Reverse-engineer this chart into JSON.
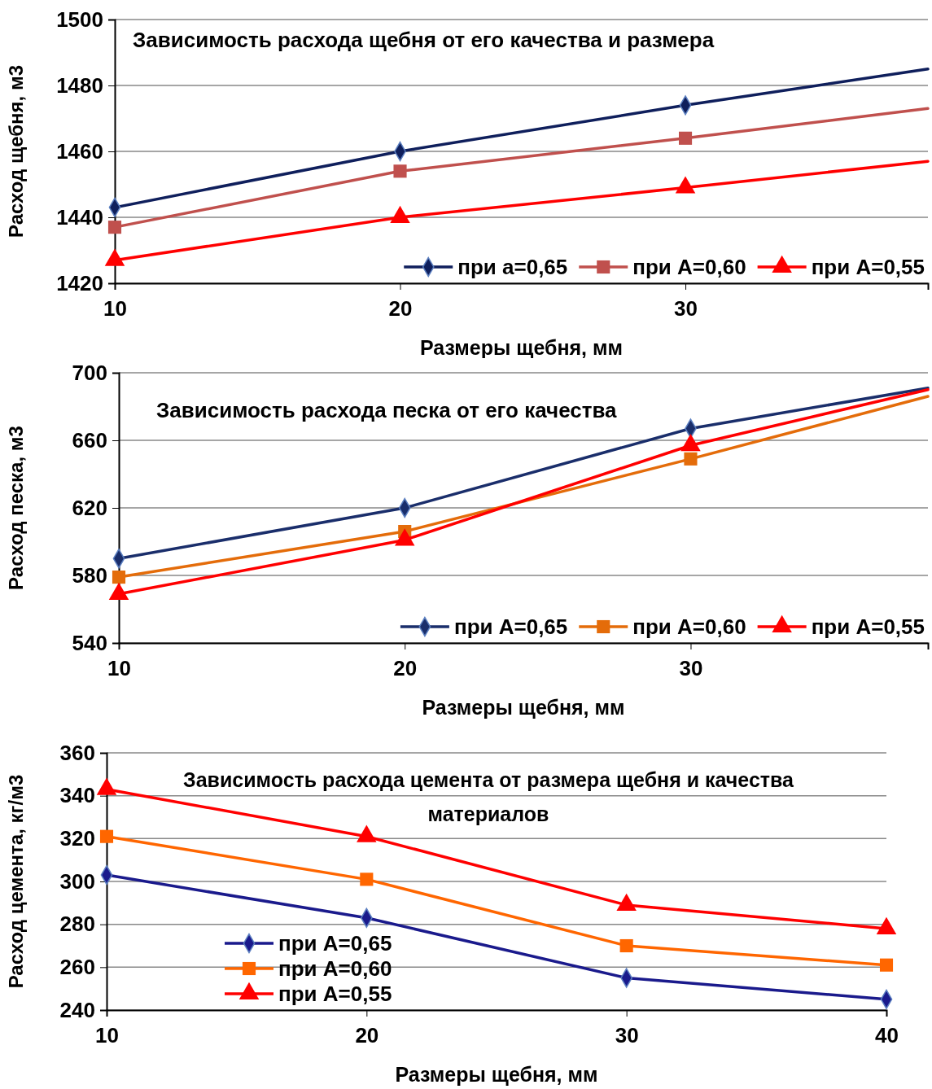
{
  "chart_data": [
    {
      "type": "line",
      "title": "Зависимость расхода щебня от его качества и размера",
      "xlabel": "Размеры щебня, мм",
      "ylabel": "Расход щебня, м3",
      "xlim": [
        10,
        38.5
      ],
      "xticks": [
        10,
        20,
        30
      ],
      "ylim": [
        1420,
        1500
      ],
      "yticks": [
        1420,
        1440,
        1460,
        1480,
        1500
      ],
      "grid": "y",
      "legend": "bottom right",
      "x": [
        10,
        20,
        30,
        38.5
      ],
      "series": [
        {
          "name": "при а=0,65",
          "color": "#0f1f5c",
          "marker": "diamond",
          "values": [
            1443,
            1460,
            1474,
            1485
          ]
        },
        {
          "name": "при А=0,60",
          "color": "#c0504d",
          "marker": "square",
          "values": [
            1437,
            1454,
            1464,
            1473
          ]
        },
        {
          "name": "при А=0,55",
          "color": "#ff0000",
          "marker": "triangle",
          "values": [
            1427,
            1440,
            1449,
            1457
          ]
        }
      ]
    },
    {
      "type": "line",
      "title": "Зависимость расхода песка от его качества",
      "xlabel": "Размеры щебня, мм",
      "ylabel": "Расход песка, м3",
      "xlim": [
        10,
        38.3
      ],
      "xticks": [
        10,
        20,
        30
      ],
      "ylim": [
        540,
        700
      ],
      "yticks": [
        540,
        580,
        620,
        660,
        700
      ],
      "grid": "y",
      "legend": "bottom right",
      "x": [
        10,
        20,
        30,
        38.3
      ],
      "series": [
        {
          "name": "при А=0,65",
          "color": "#1a2e6b",
          "marker": "diamond",
          "values": [
            590,
            620,
            667,
            691
          ]
        },
        {
          "name": "при А=0,60",
          "color": "#e46c0a",
          "marker": "square",
          "values": [
            579,
            606,
            649,
            686
          ]
        },
        {
          "name": "при А=0,55",
          "color": "#ff0000",
          "marker": "triangle",
          "values": [
            569,
            601,
            657,
            690
          ]
        }
      ]
    },
    {
      "type": "line",
      "title": "Зависимость расхода цемента от размера щебня и качества материалов",
      "xlabel": "Размеры щебня, мм",
      "ylabel": "Расход цемента, кг/м3",
      "xlim": [
        10,
        40
      ],
      "xticks": [
        10,
        20,
        30,
        40
      ],
      "ylim": [
        240,
        360
      ],
      "yticks": [
        240,
        260,
        280,
        300,
        320,
        340,
        360
      ],
      "grid": "y",
      "legend": "bottom left",
      "x": [
        10,
        20,
        30,
        40
      ],
      "series": [
        {
          "name": "при А=0,65",
          "color": "#1a1a8c",
          "marker": "diamond",
          "values": [
            303,
            283,
            255,
            245
          ]
        },
        {
          "name": "при А=0,60",
          "color": "#ff6600",
          "marker": "square",
          "values": [
            321,
            301,
            270,
            261
          ]
        },
        {
          "name": "при А=0,55",
          "color": "#ff0000",
          "marker": "triangle",
          "values": [
            343,
            321,
            289,
            278
          ]
        }
      ]
    }
  ]
}
